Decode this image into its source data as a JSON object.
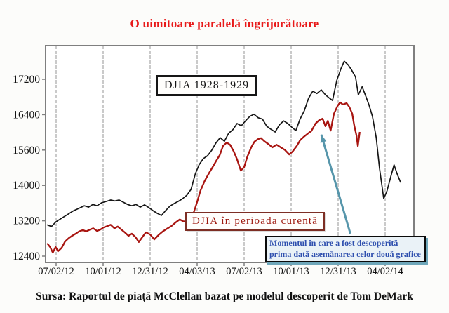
{
  "title": {
    "text": "O uimitoare paralelă îngrijorătoare"
  },
  "labels": {
    "series_1928_box": "DJIA 1928-1929",
    "series_current_box": "DJIA în perioada curentă",
    "annotation_line1": "Momentul în care a fost descoperită",
    "annotation_line2": "prima dată asemănarea celor două grafice"
  },
  "source_note": "Sursa: Raportul de piață McClellan bazat pe modelul descoperit de Tom DeMark",
  "colors": {
    "title_red": "#e81a1a",
    "series_1928_line": "#151515",
    "series_current_line": "#a81410",
    "current_box_text": "#9e1a10",
    "current_box_border": "#7d2e24",
    "annotation_text_blue": "#2e4fae",
    "annotation_bg": "#eaf2f7",
    "arrow_teal": "#5796ab",
    "gridline_gray": "#b3b3b3",
    "plot_border_gray": "#7f7f7f",
    "axis_text": "#111111"
  },
  "chart_data": {
    "type": "line",
    "title": "",
    "xlabel": "",
    "ylabel": "",
    "grid": "vertical-only",
    "legend_position": "labeled boxes inside plot",
    "x_tick_labels": [
      "07/02/12",
      "10/01/12",
      "12/31/12",
      "04/03/13",
      "07/02/13",
      "10/01/13",
      "12/31/13",
      "04/02/14"
    ],
    "y_tick_values": [
      17200,
      16400,
      15600,
      14000,
      13200,
      12400
    ],
    "y_tick_labels": [
      "17200",
      "16400",
      "15600",
      "14000",
      "13200",
      "12400"
    ],
    "y_axis_note": "tick labels printed evenly spaced exactly as in source image (numeric gaps are non-uniform)",
    "x_unit_note": "series x is in x-axis tick units: 0 = 07/02/12 tick, 1 = 10/01/12 tick, ... 7 = 04/02/14 tick",
    "series": [
      {
        "name": "DJIA 1928-1929",
        "color": "#151515",
        "points": [
          [
            -0.19,
            13110
          ],
          [
            -0.1,
            13070
          ],
          [
            0.0,
            13180
          ],
          [
            0.12,
            13260
          ],
          [
            0.24,
            13340
          ],
          [
            0.36,
            13420
          ],
          [
            0.48,
            13480
          ],
          [
            0.6,
            13540
          ],
          [
            0.69,
            13510
          ],
          [
            0.78,
            13570
          ],
          [
            0.87,
            13540
          ],
          [
            0.97,
            13610
          ],
          [
            1.07,
            13640
          ],
          [
            1.16,
            13670
          ],
          [
            1.25,
            13650
          ],
          [
            1.34,
            13670
          ],
          [
            1.43,
            13620
          ],
          [
            1.52,
            13570
          ],
          [
            1.61,
            13540
          ],
          [
            1.7,
            13570
          ],
          [
            1.79,
            13510
          ],
          [
            1.88,
            13560
          ],
          [
            1.97,
            13500
          ],
          [
            2.06,
            13430
          ],
          [
            2.15,
            13370
          ],
          [
            2.24,
            13320
          ],
          [
            2.33,
            13430
          ],
          [
            2.42,
            13530
          ],
          [
            2.51,
            13590
          ],
          [
            2.6,
            13640
          ],
          [
            2.69,
            13700
          ],
          [
            2.78,
            13780
          ],
          [
            2.87,
            13910
          ],
          [
            2.96,
            14510
          ],
          [
            3.04,
            14930
          ],
          [
            3.13,
            15210
          ],
          [
            3.22,
            15340
          ],
          [
            3.31,
            15590
          ],
          [
            3.4,
            15760
          ],
          [
            3.49,
            15880
          ],
          [
            3.58,
            15800
          ],
          [
            3.67,
            15980
          ],
          [
            3.76,
            16060
          ],
          [
            3.85,
            16200
          ],
          [
            3.94,
            16150
          ],
          [
            4.03,
            16260
          ],
          [
            4.12,
            16360
          ],
          [
            4.21,
            16410
          ],
          [
            4.3,
            16330
          ],
          [
            4.39,
            16300
          ],
          [
            4.48,
            16140
          ],
          [
            4.57,
            16070
          ],
          [
            4.66,
            16010
          ],
          [
            4.75,
            16170
          ],
          [
            4.84,
            16260
          ],
          [
            4.93,
            16200
          ],
          [
            5.01,
            16120
          ],
          [
            5.1,
            16040
          ],
          [
            5.19,
            16300
          ],
          [
            5.28,
            16490
          ],
          [
            5.37,
            16770
          ],
          [
            5.46,
            16930
          ],
          [
            5.55,
            16880
          ],
          [
            5.64,
            16960
          ],
          [
            5.73,
            16850
          ],
          [
            5.82,
            16770
          ],
          [
            5.88,
            16720
          ],
          [
            5.97,
            17170
          ],
          [
            6.06,
            17440
          ],
          [
            6.13,
            17610
          ],
          [
            6.21,
            17530
          ],
          [
            6.28,
            17420
          ],
          [
            6.37,
            17250
          ],
          [
            6.43,
            16850
          ],
          [
            6.51,
            17030
          ],
          [
            6.58,
            16840
          ],
          [
            6.66,
            16610
          ],
          [
            6.73,
            16360
          ],
          [
            6.81,
            15880
          ],
          [
            6.88,
            14770
          ],
          [
            6.97,
            13700
          ],
          [
            7.04,
            13880
          ],
          [
            7.12,
            14390
          ],
          [
            7.19,
            14930
          ],
          [
            7.25,
            14550
          ],
          [
            7.33,
            14130
          ]
        ]
      },
      {
        "name": "DJIA în perioada curentă",
        "color": "#a81410",
        "points": [
          [
            -0.19,
            12690
          ],
          [
            -0.13,
            12610
          ],
          [
            -0.07,
            12480
          ],
          [
            -0.01,
            12610
          ],
          [
            0.04,
            12510
          ],
          [
            0.12,
            12590
          ],
          [
            0.19,
            12730
          ],
          [
            0.27,
            12810
          ],
          [
            0.34,
            12860
          ],
          [
            0.42,
            12910
          ],
          [
            0.49,
            12960
          ],
          [
            0.57,
            12990
          ],
          [
            0.64,
            12960
          ],
          [
            0.72,
            13000
          ],
          [
            0.79,
            13030
          ],
          [
            0.87,
            12970
          ],
          [
            0.94,
            13000
          ],
          [
            1.01,
            13050
          ],
          [
            1.09,
            13080
          ],
          [
            1.16,
            13110
          ],
          [
            1.24,
            13030
          ],
          [
            1.31,
            13070
          ],
          [
            1.39,
            13000
          ],
          [
            1.46,
            12940
          ],
          [
            1.54,
            12860
          ],
          [
            1.61,
            12910
          ],
          [
            1.69,
            12830
          ],
          [
            1.76,
            12720
          ],
          [
            1.84,
            12840
          ],
          [
            1.91,
            12940
          ],
          [
            2.0,
            12890
          ],
          [
            2.09,
            12780
          ],
          [
            2.18,
            12880
          ],
          [
            2.27,
            12960
          ],
          [
            2.36,
            13020
          ],
          [
            2.45,
            13080
          ],
          [
            2.54,
            13160
          ],
          [
            2.63,
            13230
          ],
          [
            2.72,
            13180
          ],
          [
            2.81,
            13240
          ],
          [
            2.9,
            13300
          ],
          [
            2.99,
            13590
          ],
          [
            3.07,
            13880
          ],
          [
            3.16,
            14200
          ],
          [
            3.25,
            14550
          ],
          [
            3.33,
            14830
          ],
          [
            3.4,
            15090
          ],
          [
            3.48,
            15370
          ],
          [
            3.55,
            15690
          ],
          [
            3.63,
            15770
          ],
          [
            3.7,
            15720
          ],
          [
            3.78,
            15530
          ],
          [
            3.85,
            15180
          ],
          [
            3.93,
            14670
          ],
          [
            4.0,
            14830
          ],
          [
            4.07,
            15310
          ],
          [
            4.15,
            15660
          ],
          [
            4.22,
            15790
          ],
          [
            4.3,
            15850
          ],
          [
            4.36,
            15870
          ],
          [
            4.43,
            15800
          ],
          [
            4.51,
            15740
          ],
          [
            4.6,
            15660
          ],
          [
            4.69,
            15720
          ],
          [
            4.78,
            15660
          ],
          [
            4.87,
            15600
          ],
          [
            4.96,
            15400
          ],
          [
            5.03,
            15530
          ],
          [
            5.12,
            15690
          ],
          [
            5.19,
            15820
          ],
          [
            5.27,
            15900
          ],
          [
            5.34,
            15960
          ],
          [
            5.43,
            16030
          ],
          [
            5.52,
            16200
          ],
          [
            5.6,
            16280
          ],
          [
            5.67,
            16310
          ],
          [
            5.73,
            16140
          ],
          [
            5.78,
            16260
          ],
          [
            5.84,
            16040
          ],
          [
            5.91,
            16420
          ],
          [
            5.99,
            16600
          ],
          [
            6.04,
            16680
          ],
          [
            6.1,
            16630
          ],
          [
            6.18,
            16660
          ],
          [
            6.24,
            16570
          ],
          [
            6.3,
            16420
          ],
          [
            6.34,
            16170
          ],
          [
            6.39,
            15930
          ],
          [
            6.42,
            15690
          ],
          [
            6.46,
            16010
          ]
        ]
      }
    ],
    "annotation_arrow": {
      "from": [
        6.26,
        12910
      ],
      "to": [
        5.64,
        15950
      ]
    }
  }
}
